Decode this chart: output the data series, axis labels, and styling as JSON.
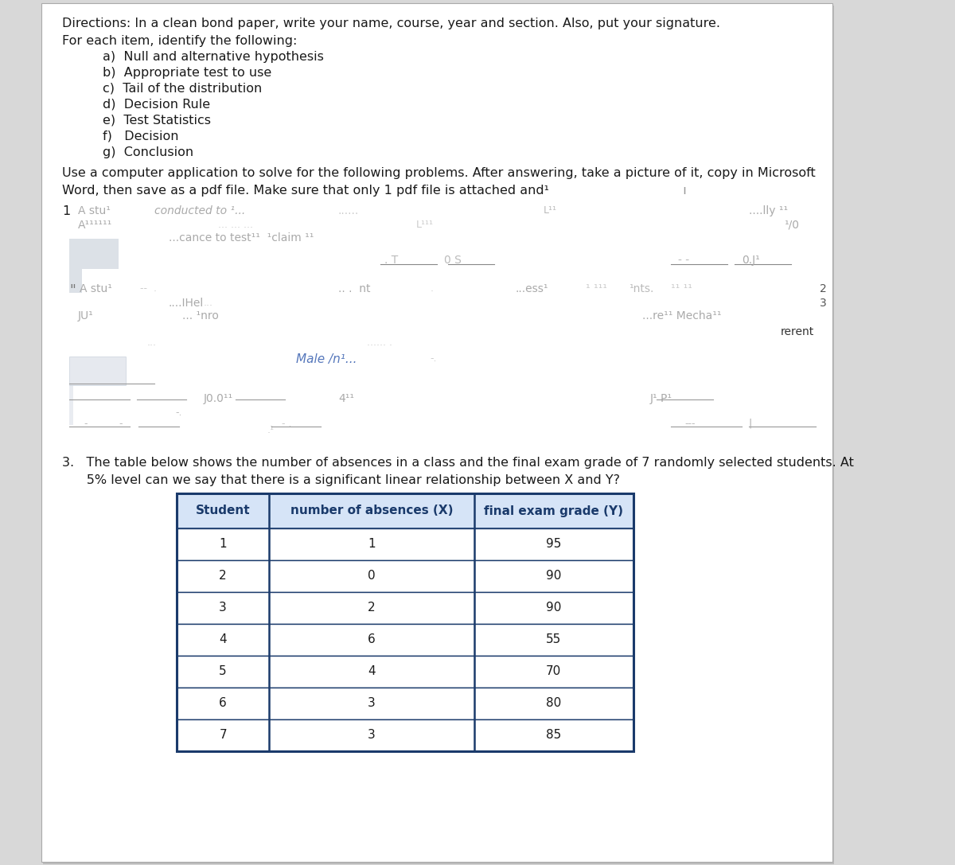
{
  "directions_title": "Directions: In a clean bond paper, write your name, course, year and section. Also, put your signature.",
  "directions_subtitle": "For each item, identify the following:",
  "items": [
    "a)  Null and alternative hypothesis",
    "b)  Appropriate test to use",
    "c)  Tail of the distribution",
    "d)  Decision Rule",
    "e)  Test Statistics",
    "f)   Decision",
    "g)  Conclusion"
  ],
  "use_text_line1": "Use a computer application to solve for the following problems. After answering, take a picture of it, copy in Microsoft",
  "use_text_line2": "Word, then save as a pdf file. Make sure that only 1 pdf file is attached and¹            ı",
  "problem3_line1": "3.   The table below shows the number of absences in a class and the final exam grade of 7 randomly selected students. At",
  "problem3_line2": "      5% level can we say that there is a significant linear relationship between X and Y?",
  "table_headers": [
    "Student",
    "number of absences (X)",
    "final exam grade (Y)"
  ],
  "table_data": [
    [
      1,
      1,
      95
    ],
    [
      2,
      0,
      90
    ],
    [
      3,
      2,
      90
    ],
    [
      4,
      6,
      55
    ],
    [
      5,
      4,
      70
    ],
    [
      6,
      3,
      80
    ],
    [
      7,
      3,
      85
    ]
  ],
  "table_header_color": "#1a3a6b",
  "table_header_bg": "#d6e4f7",
  "table_border_color": "#1a3a6b",
  "page_bg": "#ffffff",
  "outer_bg": "#d8d8d8",
  "font_size_body": 11.5,
  "font_size_table_header": 11,
  "font_size_table_data": 11
}
